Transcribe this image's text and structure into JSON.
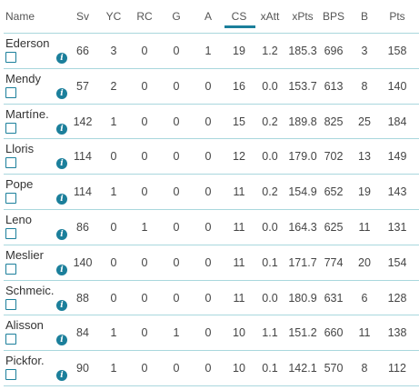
{
  "table": {
    "columns": [
      {
        "key": "name",
        "label": "Name"
      },
      {
        "key": "sv",
        "label": "Sv"
      },
      {
        "key": "yc",
        "label": "YC"
      },
      {
        "key": "rc",
        "label": "RC"
      },
      {
        "key": "g",
        "label": "G"
      },
      {
        "key": "a",
        "label": "A"
      },
      {
        "key": "cs",
        "label": "CS"
      },
      {
        "key": "xatt",
        "label": "xAtt"
      },
      {
        "key": "xpts",
        "label": "xPts"
      },
      {
        "key": "bps",
        "label": "BPS"
      },
      {
        "key": "b",
        "label": "B"
      },
      {
        "key": "pts",
        "label": "Pts"
      }
    ],
    "sorted_column": "CS",
    "accent_color": "#1b7f9b",
    "rows": [
      {
        "name": "Ederson",
        "sv": "66",
        "yc": "3",
        "rc": "0",
        "g": "0",
        "a": "1",
        "cs": "19",
        "xatt": "1.2",
        "xpts": "185.3",
        "bps": "696",
        "b": "3",
        "pts": "158"
      },
      {
        "name": "Mendy",
        "sv": "57",
        "yc": "2",
        "rc": "0",
        "g": "0",
        "a": "0",
        "cs": "16",
        "xatt": "0.0",
        "xpts": "153.7",
        "bps": "613",
        "b": "8",
        "pts": "140"
      },
      {
        "name": "Martíne.",
        "sv": "142",
        "yc": "1",
        "rc": "0",
        "g": "0",
        "a": "0",
        "cs": "15",
        "xatt": "0.2",
        "xpts": "189.8",
        "bps": "825",
        "b": "25",
        "pts": "184"
      },
      {
        "name": "Lloris",
        "sv": "114",
        "yc": "0",
        "rc": "0",
        "g": "0",
        "a": "0",
        "cs": "12",
        "xatt": "0.0",
        "xpts": "179.0",
        "bps": "702",
        "b": "13",
        "pts": "149"
      },
      {
        "name": "Pope",
        "sv": "114",
        "yc": "1",
        "rc": "0",
        "g": "0",
        "a": "0",
        "cs": "11",
        "xatt": "0.2",
        "xpts": "154.9",
        "bps": "652",
        "b": "19",
        "pts": "143"
      },
      {
        "name": "Leno",
        "sv": "86",
        "yc": "0",
        "rc": "1",
        "g": "0",
        "a": "0",
        "cs": "11",
        "xatt": "0.0",
        "xpts": "164.3",
        "bps": "625",
        "b": "11",
        "pts": "131"
      },
      {
        "name": "Meslier",
        "sv": "140",
        "yc": "0",
        "rc": "0",
        "g": "0",
        "a": "0",
        "cs": "11",
        "xatt": "0.1",
        "xpts": "171.7",
        "bps": "774",
        "b": "20",
        "pts": "154"
      },
      {
        "name": "Schmeic.",
        "sv": "88",
        "yc": "0",
        "rc": "0",
        "g": "0",
        "a": "0",
        "cs": "11",
        "xatt": "0.0",
        "xpts": "180.9",
        "bps": "631",
        "b": "6",
        "pts": "128"
      },
      {
        "name": "Alisson",
        "sv": "84",
        "yc": "1",
        "rc": "0",
        "g": "1",
        "a": "0",
        "cs": "10",
        "xatt": "1.1",
        "xpts": "151.2",
        "bps": "660",
        "b": "11",
        "pts": "138"
      },
      {
        "name": "Pickfor.",
        "sv": "90",
        "yc": "1",
        "rc": "0",
        "g": "0",
        "a": "0",
        "cs": "10",
        "xatt": "0.1",
        "xpts": "142.1",
        "bps": "570",
        "b": "8",
        "pts": "112"
      }
    ]
  },
  "icons": {
    "checkbox": "checkbox-icon",
    "info": "info-icon"
  }
}
